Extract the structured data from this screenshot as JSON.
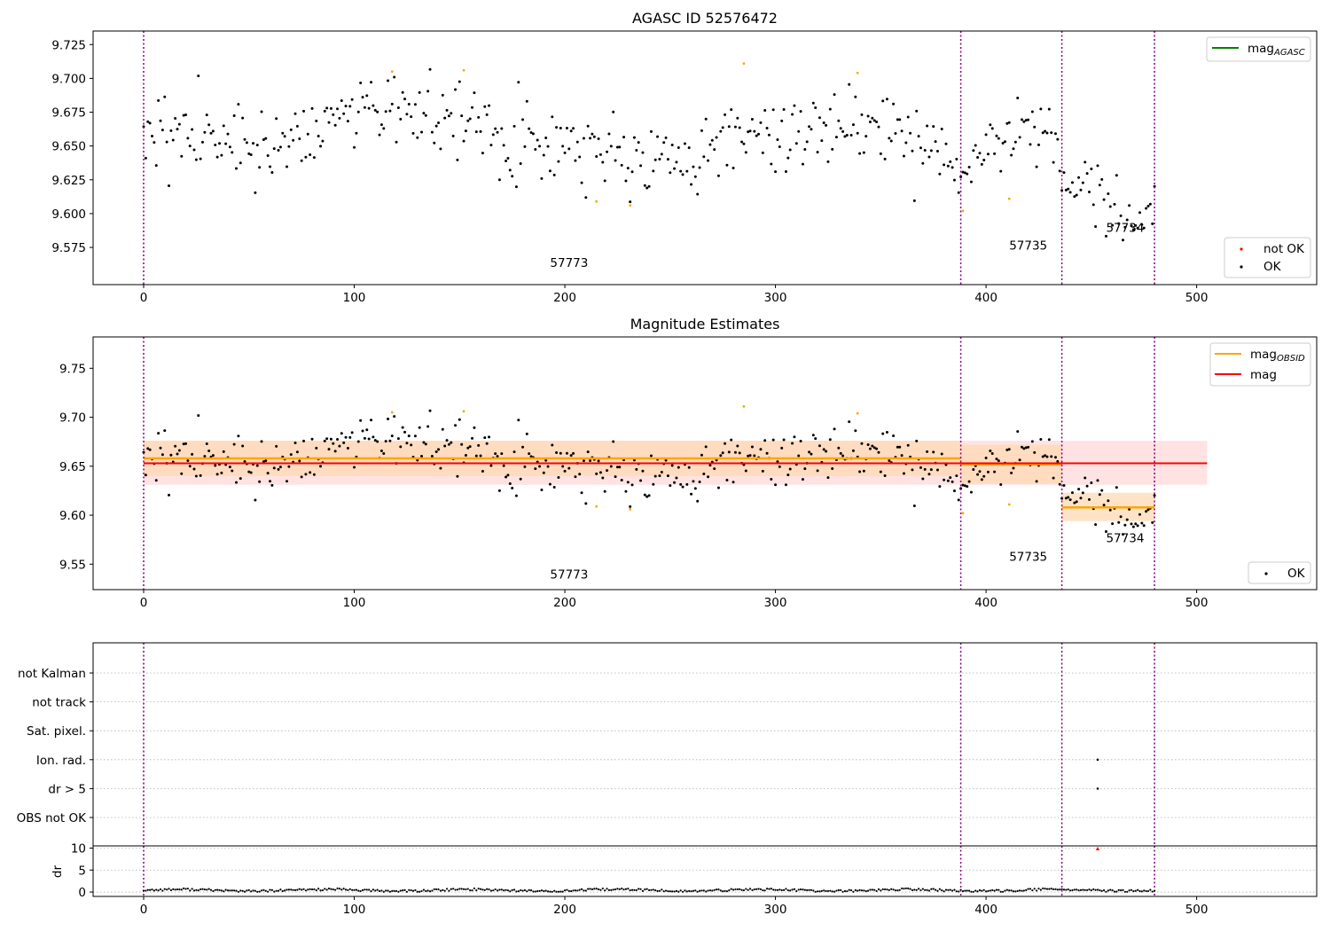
{
  "colors": {
    "ok": "#000000",
    "not_ok": "#ff0000",
    "suspect": "#ffa500",
    "mag_agasc": "#008000",
    "mag_obsid": "#ffa500",
    "mag": "#ff0000",
    "obs_boundary": "#800080",
    "obsid_band": "#ffd9b3",
    "mag_band": "#ffe0e0"
  },
  "chart_data": [
    {
      "type": "scatter",
      "title": "AGASC ID 52576472",
      "x_ticks": [
        0,
        100,
        200,
        300,
        400,
        500
      ],
      "xlim": [
        -24,
        557
      ],
      "ylim": [
        9.5475,
        9.735
      ],
      "y_ticks": [
        "9.575",
        "9.600",
        "9.625",
        "9.650",
        "9.675",
        "9.700",
        "9.725"
      ],
      "obs_boundaries": [
        0,
        388,
        436,
        480
      ],
      "obs_labels": [
        {
          "text": "57773",
          "x": 193,
          "y": 9.5605
        },
        {
          "text": "57735",
          "x": 411,
          "y": 9.5735
        },
        {
          "text": "57734",
          "x": 457,
          "y": 9.5865
        }
      ],
      "legend_lines": [
        {
          "name": "mag",
          "sub": "AGASC",
          "color": "#008000"
        }
      ],
      "legend_markers": [
        {
          "name": "not OK",
          "color": "#ff0000"
        },
        {
          "name": "OK",
          "color": "#000000"
        }
      ],
      "series": [
        {
          "name": "OK",
          "segments": [
            {
              "x0": 0,
              "x1": 387,
              "knots": [
                [
                  0,
                  9.664
                ],
                [
                  30,
                  9.656
                ],
                [
                  60,
                  9.648
                ],
                [
                  90,
                  9.668
                ],
                [
                  120,
                  9.68
                ],
                [
                  150,
                  9.665
                ],
                [
                  180,
                  9.655
                ],
                [
                  210,
                  9.648
                ],
                [
                  240,
                  9.642
                ],
                [
                  270,
                  9.646
                ],
                [
                  300,
                  9.66
                ],
                [
                  330,
                  9.662
                ],
                [
                  360,
                  9.654
                ],
                [
                  387,
                  9.638
                ]
              ],
              "noise": 0.0135
            },
            {
              "x0": 388,
              "x1": 435,
              "knots": [
                [
                  388,
                  9.632
                ],
                [
                  400,
                  9.65
                ],
                [
                  420,
                  9.658
                ],
                [
                  435,
                  9.652
                ]
              ],
              "noise": 0.013
            },
            {
              "x0": 436,
              "x1": 480,
              "knots": [
                [
                  436,
                  9.622
                ],
                [
                  450,
                  9.62
                ],
                [
                  465,
                  9.6
                ],
                [
                  475,
                  9.592
                ],
                [
                  480,
                  9.61
                ]
              ],
              "noise": 0.01
            }
          ]
        }
      ],
      "suspect_points": [
        [
          118,
          9.705
        ],
        [
          152,
          9.706
        ],
        [
          215,
          9.609
        ],
        [
          231,
          9.606
        ],
        [
          285,
          9.711
        ],
        [
          339,
          9.704
        ],
        [
          389,
          9.602
        ],
        [
          411,
          9.611
        ]
      ]
    },
    {
      "type": "scatter",
      "title": "Magnitude Estimates",
      "x_ticks": [
        0,
        100,
        200,
        300,
        400,
        500
      ],
      "xlim": [
        -24,
        557
      ],
      "ylim": [
        9.524,
        9.782
      ],
      "y_ticks": [
        "9.55",
        "9.60",
        "9.65",
        "9.70",
        "9.75"
      ],
      "obs_boundaries": [
        0,
        388,
        436,
        480
      ],
      "obs_labels": [
        {
          "text": "57773",
          "x": 193,
          "y": 9.5355
        },
        {
          "text": "57735",
          "x": 411,
          "y": 9.5535
        },
        {
          "text": "57734",
          "x": 457,
          "y": 9.5725
        }
      ],
      "legend_lines": [
        {
          "name": "mag",
          "sub": "OBSID",
          "color": "#ffa500"
        },
        {
          "name": "mag",
          "sub": "",
          "color": "#ff0000"
        }
      ],
      "legend_markers": [
        {
          "name": "OK",
          "color": "#000000"
        }
      ],
      "mag_obsid": [
        {
          "x0": 0,
          "x1": 388,
          "y": 9.658,
          "lo": 9.64,
          "hi": 9.676
        },
        {
          "x0": 388,
          "x1": 436,
          "y": 9.652,
          "lo": 9.632,
          "hi": 9.672
        },
        {
          "x0": 436,
          "x1": 480,
          "y": 9.608,
          "lo": 9.594,
          "hi": 9.623
        }
      ],
      "mag": {
        "x0": 0,
        "x1": 505,
        "y": 9.653,
        "lo": 9.631,
        "hi": 9.676
      }
    },
    {
      "type": "scatter",
      "y_categories": [
        "not Kalman",
        "not track",
        "Sat. pixel.",
        "Ion. rad.",
        "dr > 5",
        "OBS not OK"
      ],
      "flag_points": [
        {
          "category": "Ion. rad.",
          "x": 453
        },
        {
          "category": "dr > 5",
          "x": 453
        }
      ],
      "obs_boundaries": [
        0,
        388,
        436,
        480
      ]
    },
    {
      "type": "scatter",
      "ylabel": "dr",
      "x_ticks": [
        0,
        100,
        200,
        300,
        400,
        500
      ],
      "y_ticks": [
        "0",
        "5",
        "10"
      ],
      "ylim": [
        -1,
        10.5
      ],
      "obs_boundaries": [
        0,
        388,
        436,
        480
      ],
      "dr_baseline": 0.4,
      "dr_outlier": {
        "x": 453,
        "y": 9.8
      }
    }
  ]
}
